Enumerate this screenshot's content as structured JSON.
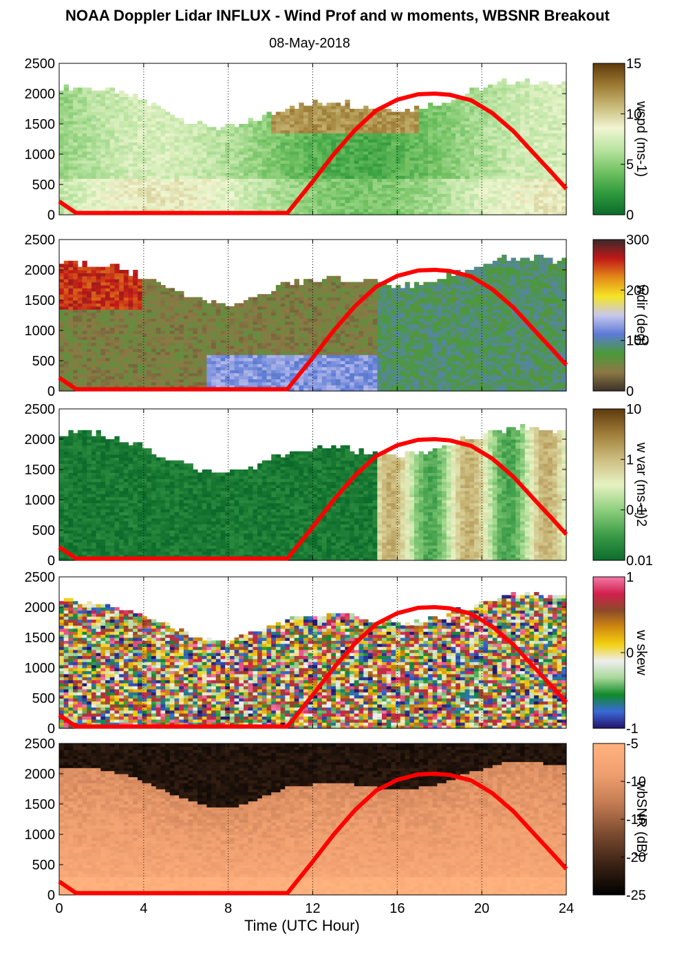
{
  "title": "NOAA Doppler Lidar INFLUX - Wind Prof and w moments, WBSNR Breakout",
  "subtitle": "08-May-2018",
  "x_axis_label": "Time (UTC Hour)",
  "x_ticks": [
    "0",
    "4",
    "8",
    "12",
    "16",
    "20",
    "24"
  ],
  "y_ticks": [
    "0",
    "500",
    "1000",
    "1500",
    "2000",
    "2500"
  ],
  "panels": [
    {
      "id": "wspd",
      "colorbar_label": "wspd (ms-1)",
      "colorbar_ticks": [
        "15",
        "10",
        "5",
        "0"
      ],
      "palette": [
        "#0b6b2b",
        "#2f9a3c",
        "#72c262",
        "#b8e3a0",
        "#f1f6d2",
        "#c9bb7a",
        "#9c7a32",
        "#5e3a0c"
      ]
    },
    {
      "id": "wdir",
      "colorbar_label": "wdir (deg)",
      "colorbar_ticks": [
        "300",
        "200",
        "100",
        "0"
      ],
      "palette": [
        "#3c3228",
        "#8c7845",
        "#4a9a3a",
        "#5c7ad6",
        "#c8c8ee",
        "#f4e423",
        "#e48a18",
        "#c01818",
        "#3a2a2a"
      ]
    },
    {
      "id": "wvar",
      "colorbar_label": "w var (ms-1)2",
      "colorbar_ticks": [
        "10",
        "1",
        "0.1",
        "0.01"
      ],
      "palette": [
        "#0b6b2b",
        "#3c9c48",
        "#8ecf7e",
        "#e6f2c2",
        "#cdbd80",
        "#a07e3a",
        "#5e3a0c"
      ]
    },
    {
      "id": "wskew",
      "colorbar_label": "w skew",
      "colorbar_ticks": [
        "1",
        "0",
        "-1"
      ],
      "palette": [
        "#24126a",
        "#3a6ad8",
        "#0f8a2a",
        "#a8d898",
        "#eeeeee",
        "#f2d010",
        "#d08a10",
        "#8c4a2a",
        "#d2204c",
        "#f47aa8"
      ]
    },
    {
      "id": "wbsnr",
      "colorbar_label": "wbSNR (dB)",
      "colorbar_ticks": [
        "-5",
        "-10",
        "-15",
        "-20",
        "-25"
      ],
      "palette": [
        "#000000",
        "#3a2214",
        "#7a4a30",
        "#c27a52",
        "#f0a070",
        "#ffb27e"
      ]
    }
  ],
  "chart_data": {
    "type": "heatmap",
    "x_range": [
      0,
      24
    ],
    "y_range": [
      0,
      2500
    ],
    "x_unit": "UTC hour",
    "y_unit": "m",
    "mixing_layer_curve": {
      "x": [
        0,
        0.8,
        10.8,
        12,
        13,
        14,
        15,
        16,
        17,
        17.8,
        18.5,
        19.5,
        20.5,
        21.5,
        22.5,
        23.3,
        24
      ],
      "y": [
        220,
        30,
        30,
        550,
        1000,
        1400,
        1720,
        1900,
        1990,
        2000,
        1980,
        1890,
        1680,
        1380,
        1000,
        700,
        430
      ]
    },
    "top_boundary": {
      "x": [
        0,
        1,
        2,
        3,
        4,
        5,
        6,
        7,
        8,
        9,
        10,
        11,
        12,
        13,
        14,
        15,
        16,
        17,
        18,
        19,
        20,
        21,
        22,
        23,
        24
      ],
      "y": [
        2100,
        2080,
        2050,
        1980,
        1850,
        1700,
        1550,
        1450,
        1400,
        1500,
        1650,
        1780,
        1800,
        1850,
        1800,
        1750,
        1720,
        1750,
        1800,
        1950,
        2050,
        2150,
        2200,
        2150,
        2100
      ]
    }
  }
}
